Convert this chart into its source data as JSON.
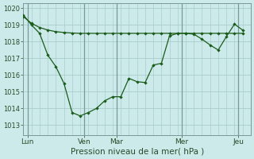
{
  "title": "",
  "xlabel": "Pression niveau de la mer( hPa )",
  "bg_color": "#cceaea",
  "line_color": "#1a5c1a",
  "grid_color": "#aacccc",
  "vline_color": "#779999",
  "ylim": [
    1012.4,
    1020.3
  ],
  "yticks": [
    1013,
    1014,
    1015,
    1016,
    1017,
    1018,
    1019,
    1020
  ],
  "xlim": [
    0,
    28
  ],
  "vlines_x": [
    0.5,
    7.5,
    11.5,
    19.5,
    26.5
  ],
  "day_labels": [
    "Lun",
    "Ven",
    "Mar",
    "Mer",
    "Jeu"
  ],
  "day_positions": [
    0.5,
    7.5,
    11.5,
    19.5,
    26.5
  ],
  "line1_x": [
    0,
    1,
    2,
    3,
    4,
    5,
    6,
    7,
    8,
    9,
    10,
    11,
    12,
    13,
    14,
    15,
    16,
    17,
    18,
    19,
    20,
    21,
    22,
    23,
    24,
    25,
    26,
    27
  ],
  "line1_y": [
    1019.5,
    1019.1,
    1018.85,
    1018.7,
    1018.6,
    1018.55,
    1018.52,
    1018.5,
    1018.5,
    1018.5,
    1018.5,
    1018.5,
    1018.5,
    1018.5,
    1018.5,
    1018.5,
    1018.5,
    1018.5,
    1018.5,
    1018.5,
    1018.5,
    1018.5,
    1018.5,
    1018.5,
    1018.5,
    1018.5,
    1018.5,
    1018.5
  ],
  "line2_x": [
    0,
    1,
    2,
    3,
    4,
    5,
    6,
    7,
    8,
    9,
    10,
    11,
    12,
    13,
    14,
    15,
    16,
    17,
    18,
    19,
    20,
    21,
    22,
    23,
    24,
    25,
    26,
    27
  ],
  "line2_y": [
    1019.6,
    1019.0,
    1018.5,
    1017.2,
    1016.5,
    1015.5,
    1013.75,
    1013.55,
    1013.75,
    1014.0,
    1014.45,
    1014.7,
    1014.7,
    1015.8,
    1015.6,
    1015.55,
    1016.6,
    1016.7,
    1018.35,
    1018.5,
    1018.5,
    1018.45,
    1018.15,
    1017.8,
    1017.5,
    1018.3,
    1019.05,
    1018.7
  ]
}
